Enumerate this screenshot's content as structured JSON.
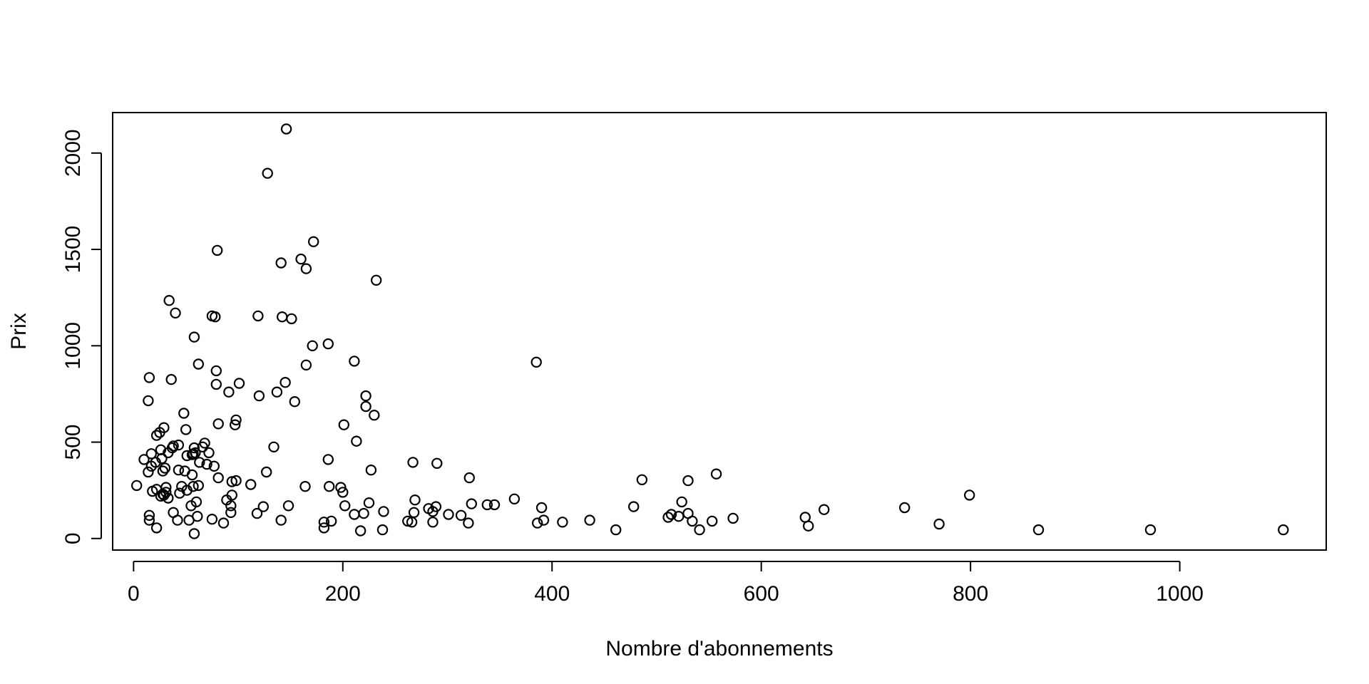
{
  "chart_data": {
    "type": "scatter",
    "title": "",
    "xlabel": "Nombre d'abonnements",
    "ylabel": "Prix",
    "xlim": [
      -20,
      1140
    ],
    "ylim": [
      -60,
      2210
    ],
    "xticks": [
      0,
      200,
      400,
      600,
      800,
      1000
    ],
    "xtick_labels": [
      "0",
      "200",
      "400",
      "600",
      "800",
      "1000"
    ],
    "yticks": [
      0,
      500,
      1000,
      1500,
      2000
    ],
    "ytick_labels": [
      "0",
      "500",
      "1000",
      "1500",
      "2000"
    ],
    "grid": false,
    "legend": "none",
    "marker": "open-circle",
    "points": [
      [
        146,
        2125
      ],
      [
        128,
        1895
      ],
      [
        172,
        1540
      ],
      [
        160,
        1450
      ],
      [
        141,
        1430
      ],
      [
        165,
        1400
      ],
      [
        80,
        1495
      ],
      [
        232,
        1340
      ],
      [
        34,
        1235
      ],
      [
        40,
        1170
      ],
      [
        75,
        1155
      ],
      [
        78,
        1150
      ],
      [
        119,
        1155
      ],
      [
        142,
        1150
      ],
      [
        151,
        1140
      ],
      [
        58,
        1045
      ],
      [
        171,
        1000
      ],
      [
        186,
        1010
      ],
      [
        211,
        920
      ],
      [
        385,
        915
      ],
      [
        62,
        905
      ],
      [
        165,
        900
      ],
      [
        79,
        870
      ],
      [
        15,
        835
      ],
      [
        36,
        825
      ],
      [
        145,
        810
      ],
      [
        101,
        805
      ],
      [
        79,
        800
      ],
      [
        137,
        760
      ],
      [
        91,
        760
      ],
      [
        120,
        740
      ],
      [
        222,
        740
      ],
      [
        14,
        715
      ],
      [
        154,
        710
      ],
      [
        222,
        685
      ],
      [
        230,
        640
      ],
      [
        48,
        650
      ],
      [
        98,
        615
      ],
      [
        97,
        590
      ],
      [
        201,
        590
      ],
      [
        81,
        595
      ],
      [
        50,
        565
      ],
      [
        29,
        575
      ],
      [
        22,
        535
      ],
      [
        25,
        550
      ],
      [
        213,
        505
      ],
      [
        134,
        475
      ],
      [
        68,
        495
      ],
      [
        43,
        485
      ],
      [
        66,
        475
      ],
      [
        58,
        470
      ],
      [
        37,
        470
      ],
      [
        38,
        480
      ],
      [
        26,
        460
      ],
      [
        17,
        440
      ],
      [
        33,
        445
      ],
      [
        57,
        440
      ],
      [
        72,
        445
      ],
      [
        59,
        445
      ],
      [
        51,
        430
      ],
      [
        56,
        435
      ],
      [
        27,
        415
      ],
      [
        10,
        410
      ],
      [
        186,
        410
      ],
      [
        21,
        395
      ],
      [
        267,
        395
      ],
      [
        290,
        390
      ],
      [
        63,
        395
      ],
      [
        70,
        385
      ],
      [
        77,
        375
      ],
      [
        17,
        375
      ],
      [
        30,
        365
      ],
      [
        227,
        355
      ],
      [
        43,
        355
      ],
      [
        49,
        350
      ],
      [
        14,
        345
      ],
      [
        127,
        345
      ],
      [
        28,
        350
      ],
      [
        56,
        330
      ],
      [
        557,
        335
      ],
      [
        321,
        315
      ],
      [
        81,
        315
      ],
      [
        486,
        305
      ],
      [
        530,
        300
      ],
      [
        98,
        300
      ],
      [
        94,
        295
      ],
      [
        3,
        275
      ],
      [
        46,
        270
      ],
      [
        62,
        275
      ],
      [
        112,
        280
      ],
      [
        164,
        270
      ],
      [
        187,
        270
      ],
      [
        198,
        265
      ],
      [
        31,
        265
      ],
      [
        51,
        250
      ],
      [
        57,
        270
      ],
      [
        18,
        245
      ],
      [
        22,
        255
      ],
      [
        44,
        235
      ],
      [
        31,
        240
      ],
      [
        28,
        230
      ],
      [
        29,
        225
      ],
      [
        200,
        240
      ],
      [
        799,
        225
      ],
      [
        94,
        225
      ],
      [
        26,
        220
      ],
      [
        33,
        210
      ],
      [
        364,
        205
      ],
      [
        269,
        200
      ],
      [
        89,
        200
      ],
      [
        524,
        190
      ],
      [
        60,
        190
      ],
      [
        225,
        185
      ],
      [
        323,
        180
      ],
      [
        345,
        175
      ],
      [
        338,
        175
      ],
      [
        148,
        170
      ],
      [
        289,
        165
      ],
      [
        124,
        165
      ],
      [
        202,
        170
      ],
      [
        55,
        170
      ],
      [
        93,
        170
      ],
      [
        390,
        160
      ],
      [
        478,
        165
      ],
      [
        737,
        160
      ],
      [
        282,
        155
      ],
      [
        660,
        150
      ],
      [
        38,
        135
      ],
      [
        93,
        135
      ],
      [
        239,
        140
      ],
      [
        268,
        135
      ],
      [
        286,
        140
      ],
      [
        301,
        125
      ],
      [
        118,
        130
      ],
      [
        220,
        130
      ],
      [
        211,
        125
      ],
      [
        313,
        120
      ],
      [
        514,
        125
      ],
      [
        521,
        115
      ],
      [
        15,
        120
      ],
      [
        61,
        115
      ],
      [
        511,
        110
      ],
      [
        530,
        130
      ],
      [
        573,
        105
      ],
      [
        642,
        110
      ],
      [
        392,
        95
      ],
      [
        436,
        95
      ],
      [
        410,
        85
      ],
      [
        42,
        95
      ],
      [
        53,
        95
      ],
      [
        75,
        100
      ],
      [
        15,
        95
      ],
      [
        141,
        95
      ],
      [
        262,
        90
      ],
      [
        266,
        85
      ],
      [
        286,
        85
      ],
      [
        182,
        85
      ],
      [
        189,
        90
      ],
      [
        86,
        80
      ],
      [
        320,
        80
      ],
      [
        386,
        80
      ],
      [
        534,
        90
      ],
      [
        553,
        90
      ],
      [
        770,
        75
      ],
      [
        645,
        65
      ],
      [
        22,
        55
      ],
      [
        182,
        55
      ],
      [
        217,
        40
      ],
      [
        238,
        45
      ],
      [
        461,
        45
      ],
      [
        541,
        45
      ],
      [
        865,
        45
      ],
      [
        972,
        45
      ],
      [
        1099,
        45
      ],
      [
        58,
        25
      ]
    ]
  }
}
